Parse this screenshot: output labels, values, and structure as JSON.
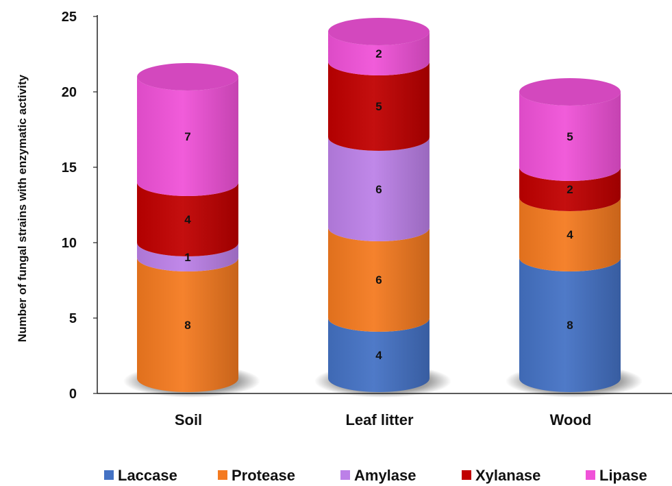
{
  "chart_data": {
    "type": "bar",
    "stacked": true,
    "style": "3d-cylinder",
    "title": "",
    "xlabel": "",
    "ylabel": "Number of fungal strains with enzymatic activity",
    "ylim": [
      0,
      25
    ],
    "yticks": [
      "0",
      "5",
      "10",
      "15",
      "20",
      "25"
    ],
    "categories": [
      "Soil",
      "Leaf litter",
      "Wood"
    ],
    "series": [
      {
        "name": "Laccase",
        "color": "#4472C4",
        "values": [
          0,
          4,
          8
        ]
      },
      {
        "name": "Protease",
        "color": "#F47A20",
        "values": [
          8,
          6,
          4
        ]
      },
      {
        "name": "Amylase",
        "color": "#BC80E8",
        "values": [
          1,
          6,
          0
        ]
      },
      {
        "name": "Xylanase",
        "color": "#C00000",
        "values": [
          4,
          5,
          2
        ]
      },
      {
        "name": "Lipase",
        "color": "#F052D8",
        "values": [
          7,
          2,
          5
        ]
      }
    ],
    "data_labels": [
      {
        "category": "Soil",
        "series": "Protease",
        "text": "8"
      },
      {
        "category": "Soil",
        "series": "Amylase",
        "text": "1"
      },
      {
        "category": "Soil",
        "series": "Xylanase",
        "text": "4"
      },
      {
        "category": "Soil",
        "series": "Lipase",
        "text": "7"
      },
      {
        "category": "Leaf litter",
        "series": "Laccase",
        "text": "4"
      },
      {
        "category": "Leaf litter",
        "series": "Protease",
        "text": "6"
      },
      {
        "category": "Leaf litter",
        "series": "Amylase",
        "text": "6"
      },
      {
        "category": "Leaf litter",
        "series": "Xylanase",
        "text": "5"
      },
      {
        "category": "Leaf litter",
        "series": "Lipase",
        "text": "2"
      },
      {
        "category": "Wood",
        "series": "Laccase",
        "text": "8"
      },
      {
        "category": "Wood",
        "series": "Protease",
        "text": "4"
      },
      {
        "category": "Wood",
        "series": "Xylanase",
        "text": "2"
      },
      {
        "category": "Wood",
        "series": "Lipase",
        "text": "5"
      }
    ],
    "grid": false,
    "legend_position": "bottom"
  }
}
